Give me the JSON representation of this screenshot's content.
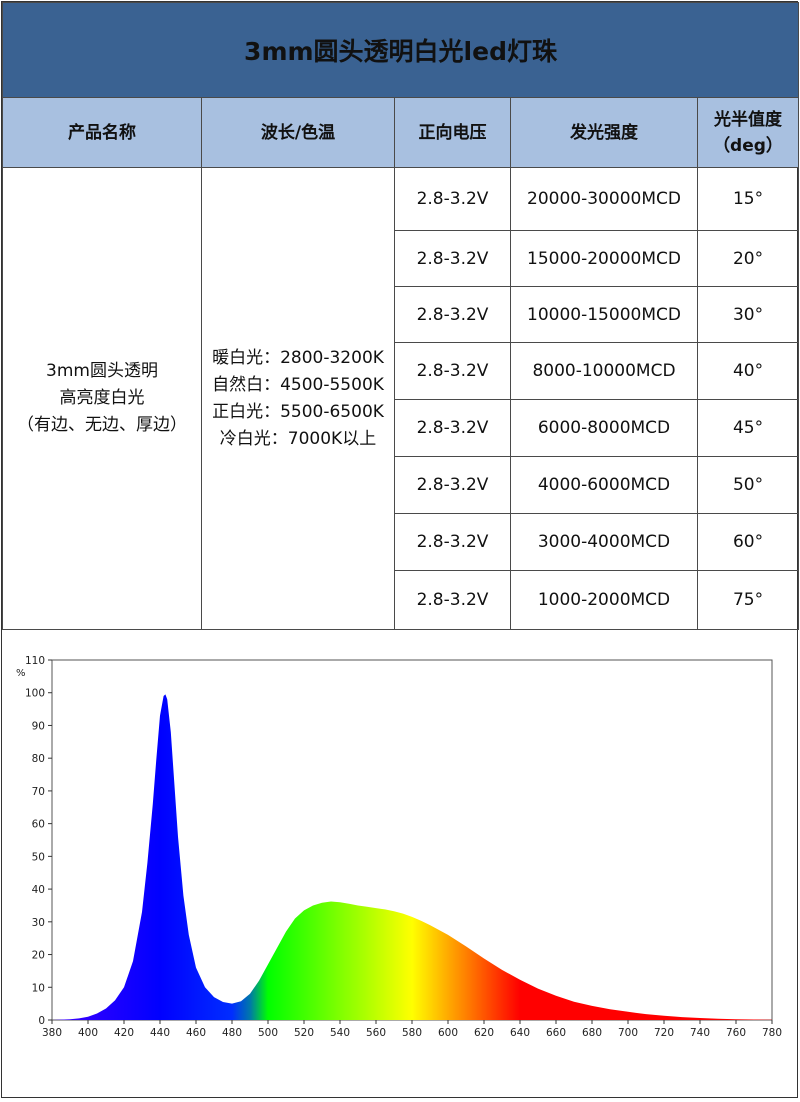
{
  "table": {
    "title": "3mm圆头透明白光led灯珠",
    "headers": [
      "产品名称",
      "波长/色温",
      "正向电压",
      "发光强度",
      [
        "光半值度",
        "（deg）"
      ]
    ],
    "product_name": [
      "3mm圆头透明",
      "高亮度白光",
      "（有边、无边、厚边）"
    ],
    "color_temps": [
      "暖白光：2800-3200K",
      "自然白：4500-5500K",
      "正白光：5500-6500K",
      "冷白光：7000K以上"
    ],
    "rows": [
      {
        "voltage": "2.8-3.2V",
        "intensity": "20000-30000MCD",
        "angle": "15°"
      },
      {
        "voltage": "2.8-3.2V",
        "intensity": "15000-20000MCD",
        "angle": "20°"
      },
      {
        "voltage": "2.8-3.2V",
        "intensity": "10000-15000MCD",
        "angle": "30°"
      },
      {
        "voltage": "2.8-3.2V",
        "intensity": "8000-10000MCD",
        "angle": "40°"
      },
      {
        "voltage": "2.8-3.2V",
        "intensity": "6000-8000MCD",
        "angle": "45°"
      },
      {
        "voltage": "2.8-3.2V",
        "intensity": "4000-6000MCD",
        "angle": "50°"
      },
      {
        "voltage": "2.8-3.2V",
        "intensity": "3000-4000MCD",
        "angle": "60°"
      },
      {
        "voltage": "2.8-3.2V",
        "intensity": "1000-2000MCD",
        "angle": "75°"
      }
    ]
  },
  "colors": {
    "title_bg": "#3a6292",
    "header_bg": "#a8c0e0"
  },
  "chart_data": {
    "type": "area",
    "title": "",
    "xlabel": "",
    "ylabel": "%",
    "xlim": [
      380,
      780
    ],
    "ylim": [
      0,
      110
    ],
    "x_ticks": [
      380,
      400,
      420,
      440,
      460,
      480,
      500,
      520,
      540,
      560,
      580,
      600,
      620,
      640,
      660,
      680,
      700,
      720,
      740,
      760,
      780
    ],
    "y_ticks": [
      0,
      10,
      20,
      30,
      40,
      50,
      60,
      70,
      80,
      90,
      100,
      110
    ],
    "grid": false,
    "fill": "spectrum colors by wavelength",
    "series": [
      {
        "x": [
          380,
          390,
          395,
          400,
          405,
          410,
          415,
          420,
          425,
          430,
          433,
          436,
          438,
          440,
          442,
          443,
          444,
          446,
          448,
          450,
          453,
          456,
          460,
          465,
          470,
          475,
          480,
          485,
          490,
          495,
          500,
          505,
          510,
          515,
          520,
          525,
          530,
          535,
          540,
          545,
          550,
          555,
          560,
          565,
          570,
          575,
          580,
          585,
          590,
          595,
          600,
          610,
          620,
          630,
          640,
          650,
          660,
          670,
          680,
          690,
          700,
          710,
          720,
          730,
          740,
          750,
          760,
          770,
          780
        ],
        "y": [
          0,
          0.2,
          0.5,
          1,
          2,
          3.5,
          6,
          10,
          18,
          33,
          48,
          66,
          80,
          93,
          99,
          99.5,
          98,
          88,
          72,
          56,
          38,
          26,
          16,
          10,
          7,
          5.5,
          5,
          5.7,
          8,
          12,
          17,
          22,
          27,
          31,
          33.5,
          35,
          35.8,
          36.2,
          36,
          35.5,
          35,
          34.6,
          34.2,
          33.8,
          33.2,
          32.5,
          31.5,
          30.3,
          29,
          27.5,
          26,
          22.5,
          18.8,
          15.3,
          12.3,
          9.6,
          7.4,
          5.6,
          4.3,
          3.3,
          2.5,
          1.8,
          1.3,
          0.9,
          0.6,
          0.4,
          0.25,
          0.15,
          0.1
        ]
      }
    ]
  }
}
